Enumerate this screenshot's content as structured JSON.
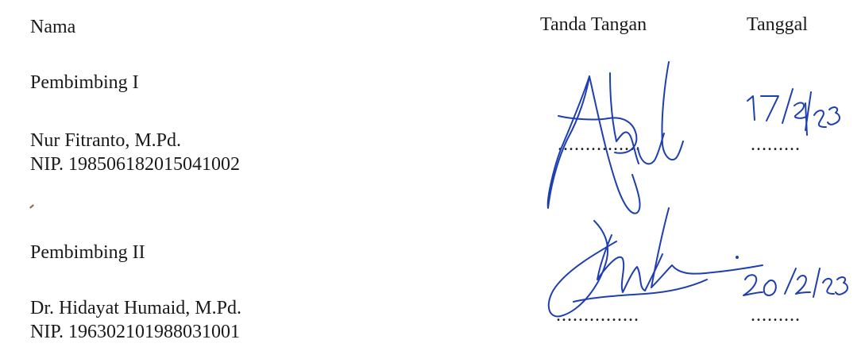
{
  "header": {
    "nama_label": "Nama",
    "signature_label": "Tanda Tangan",
    "date_label": "Tanggal"
  },
  "supervisor1": {
    "role": "Pembimbing I",
    "name": "Nur Fitranto, M.Pd.",
    "nip": "NIP. 198506182015041002",
    "signature_icon": "handwritten-signature",
    "date": "17/2/23"
  },
  "supervisor2": {
    "role": "Pembimbing II",
    "name": "Dr. Hidayat Humaid, M.Pd.",
    "nip": "NIP. 196302101988031001",
    "signature_icon": "handwritten-signature",
    "date": "20/2/23"
  },
  "colors": {
    "ink": "#1f3fb0",
    "text": "#1a1a1a"
  }
}
